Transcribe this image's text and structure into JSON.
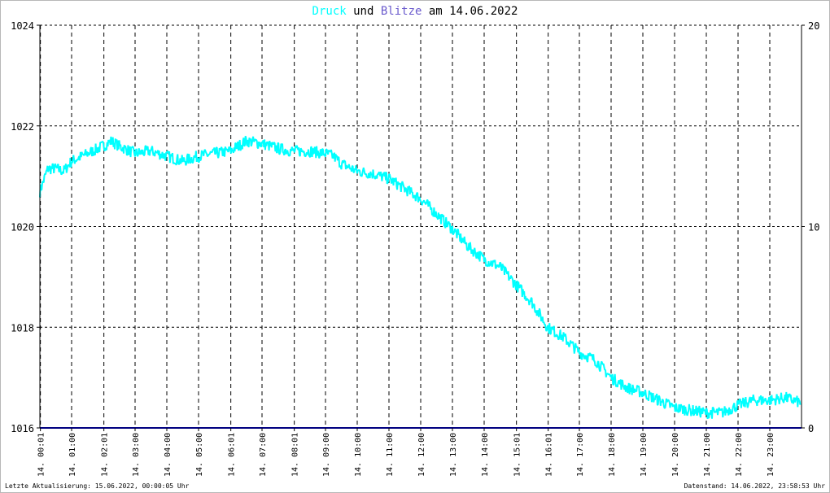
{
  "title": {
    "druck": "Druck",
    "und": "und",
    "blitze": "Blitze",
    "am": "am",
    "date": "14.06.2022",
    "druck_color": "#00ffff",
    "blitze_color": "#6a5acd",
    "text_color": "#000000"
  },
  "footer": {
    "left": "Letzte Aktualisierung: 15.06.2022, 00:00:05 Uhr",
    "right": "Datenstand: 14.06.2022, 23:58:53 Uhr"
  },
  "chart_data": {
    "type": "line",
    "x_unit": "hours since 00:00 on 14.06.2022",
    "xlim": [
      0,
      24
    ],
    "ylim_left": [
      1016,
      1024
    ],
    "ylim_right": [
      0,
      20
    ],
    "yticks_left": [
      "1016",
      "1018",
      "1020",
      "1022",
      "1024"
    ],
    "yticks_right": [
      "0",
      "10",
      "20"
    ],
    "xticks": [
      {
        "x": 0.017,
        "label": "14. 00:01"
      },
      {
        "x": 1.0,
        "label": "14. 01:00"
      },
      {
        "x": 2.017,
        "label": "14. 02:01"
      },
      {
        "x": 3.0,
        "label": "14. 03:00"
      },
      {
        "x": 4.0,
        "label": "14. 04:00"
      },
      {
        "x": 5.0,
        "label": "14. 05:00"
      },
      {
        "x": 6.017,
        "label": "14. 06:01"
      },
      {
        "x": 7.0,
        "label": "14. 07:00"
      },
      {
        "x": 8.017,
        "label": "14. 08:01"
      },
      {
        "x": 9.0,
        "label": "14. 09:00"
      },
      {
        "x": 10.0,
        "label": "14. 10:00"
      },
      {
        "x": 11.0,
        "label": "14. 11:00"
      },
      {
        "x": 12.0,
        "label": "14. 12:00"
      },
      {
        "x": 13.0,
        "label": "14. 13:00"
      },
      {
        "x": 14.0,
        "label": "14. 14:00"
      },
      {
        "x": 15.017,
        "label": "14. 15:01"
      },
      {
        "x": 16.017,
        "label": "14. 16:01"
      },
      {
        "x": 17.0,
        "label": "14. 17:00"
      },
      {
        "x": 18.0,
        "label": "14. 18:00"
      },
      {
        "x": 19.0,
        "label": "14. 19:00"
      },
      {
        "x": 20.0,
        "label": "14. 20:00"
      },
      {
        "x": 21.0,
        "label": "14. 21:00"
      },
      {
        "x": 22.0,
        "label": "14. 22:00"
      },
      {
        "x": 23.0,
        "label": "14. 23:00"
      }
    ],
    "grid": true,
    "series": [
      {
        "name": "Druck",
        "axis": "left",
        "color": "#00ffff",
        "x": [
          0,
          0.25,
          0.5,
          0.75,
          1,
          1.5,
          2,
          2.25,
          2.5,
          3,
          3.5,
          4,
          4.5,
          5,
          5.5,
          6,
          6.5,
          7,
          7.5,
          8,
          8.5,
          9,
          9.25,
          9.5,
          10,
          10.5,
          11,
          11.5,
          12,
          12.5,
          13,
          13.5,
          14,
          14.5,
          15,
          15.5,
          16,
          16.5,
          17,
          17.5,
          18,
          18.5,
          19,
          19.5,
          20,
          20.5,
          21,
          21.5,
          22,
          22.5,
          23,
          23.5,
          23.97
        ],
        "y": [
          1020.7,
          1021.15,
          1021.15,
          1021.1,
          1021.3,
          1021.45,
          1021.6,
          1021.7,
          1021.6,
          1021.45,
          1021.5,
          1021.4,
          1021.3,
          1021.4,
          1021.45,
          1021.5,
          1021.7,
          1021.65,
          1021.55,
          1021.5,
          1021.5,
          1021.45,
          1021.4,
          1021.25,
          1021.1,
          1021.05,
          1020.95,
          1020.75,
          1020.55,
          1020.25,
          1019.95,
          1019.6,
          1019.35,
          1019.2,
          1018.85,
          1018.5,
          1018.0,
          1017.8,
          1017.5,
          1017.35,
          1017.0,
          1016.8,
          1016.7,
          1016.55,
          1016.4,
          1016.35,
          1016.3,
          1016.3,
          1016.45,
          1016.55,
          1016.55,
          1016.6,
          1016.5
        ]
      },
      {
        "name": "Blitze",
        "axis": "right",
        "color": "#000080",
        "x": [
          0,
          24
        ],
        "y": [
          0,
          0
        ]
      }
    ]
  }
}
